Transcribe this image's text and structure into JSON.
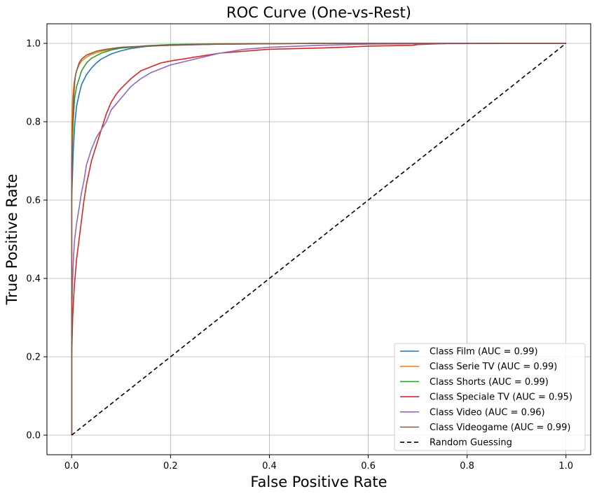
{
  "chart_data": {
    "type": "line",
    "title": "ROC Curve (One-vs-Rest)",
    "xlabel": "False Positive Rate",
    "ylabel": "True Positive Rate",
    "xlim": [
      -0.05,
      1.05
    ],
    "ylim": [
      -0.05,
      1.05
    ],
    "xticks": [
      0.0,
      0.2,
      0.4,
      0.6,
      0.8,
      1.0
    ],
    "yticks": [
      0.0,
      0.2,
      0.4,
      0.6,
      0.8,
      1.0
    ],
    "xtick_labels": [
      "0.0",
      "0.2",
      "0.4",
      "0.6",
      "0.8",
      "1.0"
    ],
    "ytick_labels": [
      "0.0",
      "0.2",
      "0.4",
      "0.6",
      "0.8",
      "1.0"
    ],
    "grid": true,
    "legend_position": "lower-right",
    "series": [
      {
        "name": "Class Film (AUC = 0.99)",
        "color": "#1f77b4",
        "dash": "solid",
        "x": [
          0,
          0.0,
          0.003,
          0.006,
          0.01,
          0.015,
          0.02,
          0.03,
          0.04,
          0.05,
          0.06,
          0.08,
          0.1,
          0.12,
          0.15,
          0.2,
          0.3,
          0.5,
          1.0
        ],
        "y": [
          0,
          0.6,
          0.72,
          0.79,
          0.84,
          0.87,
          0.895,
          0.92,
          0.937,
          0.95,
          0.96,
          0.973,
          0.981,
          0.987,
          0.992,
          0.996,
          0.998,
          1.0,
          1.0
        ]
      },
      {
        "name": "Class Serie TV (AUC = 0.99)",
        "color": "#ff7f0e",
        "dash": "solid",
        "x": [
          0,
          0.0,
          0.002,
          0.005,
          0.008,
          0.01,
          0.015,
          0.02,
          0.03,
          0.04,
          0.06,
          0.1,
          0.15,
          0.2,
          0.3,
          0.5,
          1.0
        ],
        "y": [
          0,
          0.8,
          0.86,
          0.9,
          0.92,
          0.93,
          0.945,
          0.955,
          0.965,
          0.972,
          0.98,
          0.988,
          0.993,
          0.996,
          0.998,
          1.0,
          1.0
        ]
      },
      {
        "name": "Class Shorts (AUC = 0.99)",
        "color": "#2ca02c",
        "dash": "solid",
        "x": [
          0,
          0.0,
          0.003,
          0.006,
          0.01,
          0.015,
          0.02,
          0.03,
          0.04,
          0.06,
          0.08,
          0.1,
          0.15,
          0.2,
          0.3,
          0.5,
          1.0
        ],
        "y": [
          0,
          0.7,
          0.8,
          0.86,
          0.89,
          0.91,
          0.93,
          0.95,
          0.962,
          0.975,
          0.983,
          0.988,
          0.994,
          0.997,
          0.999,
          1.0,
          1.0
        ]
      },
      {
        "name": "Class Speciale TV (AUC = 0.95)",
        "color": "#d62728",
        "dash": "solid",
        "x": [
          0,
          0.0,
          0.002,
          0.004,
          0.006,
          0.008,
          0.01,
          0.015,
          0.02,
          0.025,
          0.03,
          0.04,
          0.05,
          0.06,
          0.07,
          0.08,
          0.09,
          0.1,
          0.12,
          0.14,
          0.16,
          0.18,
          0.2,
          0.25,
          0.3,
          0.4,
          0.5,
          0.55,
          0.6,
          0.69,
          0.7,
          0.77,
          1.0
        ],
        "y": [
          0,
          0.2,
          0.3,
          0.35,
          0.39,
          0.42,
          0.45,
          0.5,
          0.55,
          0.6,
          0.64,
          0.7,
          0.74,
          0.78,
          0.82,
          0.85,
          0.87,
          0.885,
          0.91,
          0.93,
          0.94,
          0.95,
          0.955,
          0.965,
          0.975,
          0.985,
          0.988,
          0.99,
          0.993,
          0.995,
          0.997,
          1.0,
          1.0
        ]
      },
      {
        "name": "Class Video (AUC = 0.96)",
        "color": "#9467bd",
        "dash": "solid",
        "x": [
          0,
          0.0,
          0.002,
          0.004,
          0.006,
          0.008,
          0.01,
          0.015,
          0.02,
          0.025,
          0.03,
          0.04,
          0.05,
          0.06,
          0.07,
          0.08,
          0.1,
          0.12,
          0.14,
          0.16,
          0.18,
          0.2,
          0.25,
          0.3,
          0.35,
          0.4,
          0.5,
          0.6,
          0.7,
          1.0
        ],
        "y": [
          0,
          0.3,
          0.4,
          0.46,
          0.5,
          0.52,
          0.54,
          0.58,
          0.62,
          0.65,
          0.69,
          0.73,
          0.76,
          0.78,
          0.8,
          0.83,
          0.86,
          0.89,
          0.91,
          0.925,
          0.935,
          0.945,
          0.96,
          0.975,
          0.985,
          0.99,
          0.995,
          0.998,
          0.999,
          1.0
        ]
      },
      {
        "name": "Class Videogame (AUC = 0.99)",
        "color": "#8c564b",
        "dash": "solid",
        "x": [
          0,
          0.0,
          0.002,
          0.004,
          0.006,
          0.008,
          0.01,
          0.015,
          0.02,
          0.03,
          0.05,
          0.07,
          0.1,
          0.15,
          0.2,
          0.3,
          0.5,
          1.0
        ],
        "y": [
          0,
          0.66,
          0.8,
          0.86,
          0.9,
          0.92,
          0.93,
          0.95,
          0.96,
          0.97,
          0.98,
          0.985,
          0.99,
          0.993,
          0.995,
          0.998,
          1.0,
          1.0
        ]
      },
      {
        "name": "Random Guessing",
        "color": "#000000",
        "dash": "dashed",
        "x": [
          0,
          1
        ],
        "y": [
          0,
          1
        ]
      }
    ]
  }
}
